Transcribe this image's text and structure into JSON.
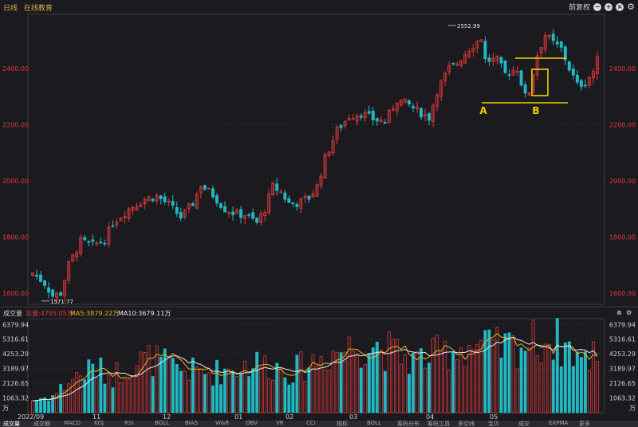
{
  "header": {
    "tab_daily": "日线",
    "tab_online": "在线教育",
    "mode_label": "前复权",
    "controls": [
      "minus-circle-icon",
      "plus-circle-icon",
      "close-circle-icon",
      "gear-icon"
    ]
  },
  "price_axis": {
    "ticks": [
      "1600.00",
      "1800.00",
      "2000.00",
      "2200.00",
      "2400.00"
    ],
    "tick_values": [
      1600,
      1800,
      2000,
      2200,
      2400
    ],
    "range": [
      1560,
      2570
    ],
    "high_label": "2552.99",
    "low_label": "1571.77"
  },
  "annotations": {
    "point_a": "A",
    "point_b": "B",
    "line_color": "#f2d000"
  },
  "volume_panel": {
    "title": "成交量",
    "total_label": "总量:4795.05万",
    "ma5_label": "MA5:3879.22万",
    "ma10_label": "MA10:3679.11万",
    "ticks": [
      "1063.32",
      "2126.65",
      "3189.97",
      "4253.29",
      "5316.61",
      "6379.94"
    ],
    "tick_values": [
      1063.32,
      2126.65,
      3189.97,
      4253.29,
      5316.61,
      6379.94
    ],
    "unit": "万",
    "max": 6800
  },
  "x_axis": {
    "labels": [
      "2022/09",
      "11",
      "12",
      "01",
      "02",
      "03",
      "04",
      "05"
    ]
  },
  "colors": {
    "up": "#e0383c",
    "down": "#22b8c3",
    "axis_red": "#e0383c",
    "ma5": "#e6b422",
    "ma10": "#e8e8e8",
    "grid": "#2f2f35"
  },
  "bottom_tabs": [
    "成交量",
    "成交额",
    "MACD",
    "KDJ",
    "RSI",
    "BOLL",
    "BIAS",
    "W&R",
    "OBV",
    "VR",
    "CCI",
    "指标",
    "BOLL",
    "筹码分布",
    "筹码工具",
    "多空线",
    "宝贝",
    "成交",
    "EXPMA",
    "更多"
  ],
  "chart_data": {
    "type": "candlestick",
    "anchors": [
      [
        0,
        1672
      ],
      [
        3,
        1635
      ],
      [
        5,
        1590
      ],
      [
        7,
        1600
      ],
      [
        9,
        1700
      ],
      [
        12,
        1785
      ],
      [
        15,
        1770
      ],
      [
        18,
        1790
      ],
      [
        20,
        1850
      ],
      [
        24,
        1900
      ],
      [
        28,
        1935
      ],
      [
        31,
        1945
      ],
      [
        34,
        1915
      ],
      [
        37,
        1870
      ],
      [
        40,
        1920
      ],
      [
        42,
        1985
      ],
      [
        45,
        1950
      ],
      [
        48,
        1900
      ],
      [
        51,
        1880
      ],
      [
        53,
        1880
      ],
      [
        56,
        1850
      ],
      [
        58,
        1900
      ],
      [
        60,
        1980
      ],
      [
        62,
        1960
      ],
      [
        64,
        1920
      ],
      [
        66,
        1920
      ],
      [
        69,
        1940
      ],
      [
        71,
        1980
      ],
      [
        73,
        2080
      ],
      [
        76,
        2180
      ],
      [
        79,
        2230
      ],
      [
        82,
        2240
      ],
      [
        85,
        2220
      ],
      [
        88,
        2210
      ],
      [
        91,
        2290
      ],
      [
        94,
        2270
      ],
      [
        96,
        2250
      ],
      [
        99,
        2225
      ],
      [
        101,
        2320
      ],
      [
        104,
        2400
      ],
      [
        106,
        2420
      ],
      [
        109,
        2470
      ],
      [
        112,
        2510
      ],
      [
        113,
        2430
      ],
      [
        116,
        2430
      ],
      [
        118,
        2380
      ],
      [
        121,
        2400
      ],
      [
        123,
        2300
      ],
      [
        124,
        2320
      ],
      [
        126,
        2450
      ],
      [
        128,
        2520
      ],
      [
        130,
        2490
      ],
      [
        132,
        2470
      ],
      [
        134,
        2400
      ],
      [
        136,
        2340
      ],
      [
        138,
        2350
      ],
      [
        140,
        2390
      ],
      [
        141,
        2430
      ]
    ],
    "n_candles": 142,
    "volume_anchors": [
      [
        0,
        900
      ],
      [
        5,
        1200
      ],
      [
        10,
        2500
      ],
      [
        15,
        3200
      ],
      [
        20,
        2700
      ],
      [
        25,
        3600
      ],
      [
        30,
        3900
      ],
      [
        35,
        3200
      ],
      [
        40,
        3000
      ],
      [
        45,
        2900
      ],
      [
        50,
        3200
      ],
      [
        55,
        3600
      ],
      [
        60,
        3400
      ],
      [
        65,
        3000
      ],
      [
        70,
        3700
      ],
      [
        75,
        4400
      ],
      [
        80,
        4800
      ],
      [
        85,
        5000
      ],
      [
        90,
        4300
      ],
      [
        95,
        3800
      ],
      [
        100,
        4100
      ],
      [
        105,
        4600
      ],
      [
        110,
        4900
      ],
      [
        115,
        4600
      ],
      [
        120,
        4800
      ],
      [
        125,
        5100
      ],
      [
        130,
        5300
      ],
      [
        135,
        4500
      ],
      [
        138,
        3600
      ],
      [
        141,
        4800
      ]
    ]
  }
}
